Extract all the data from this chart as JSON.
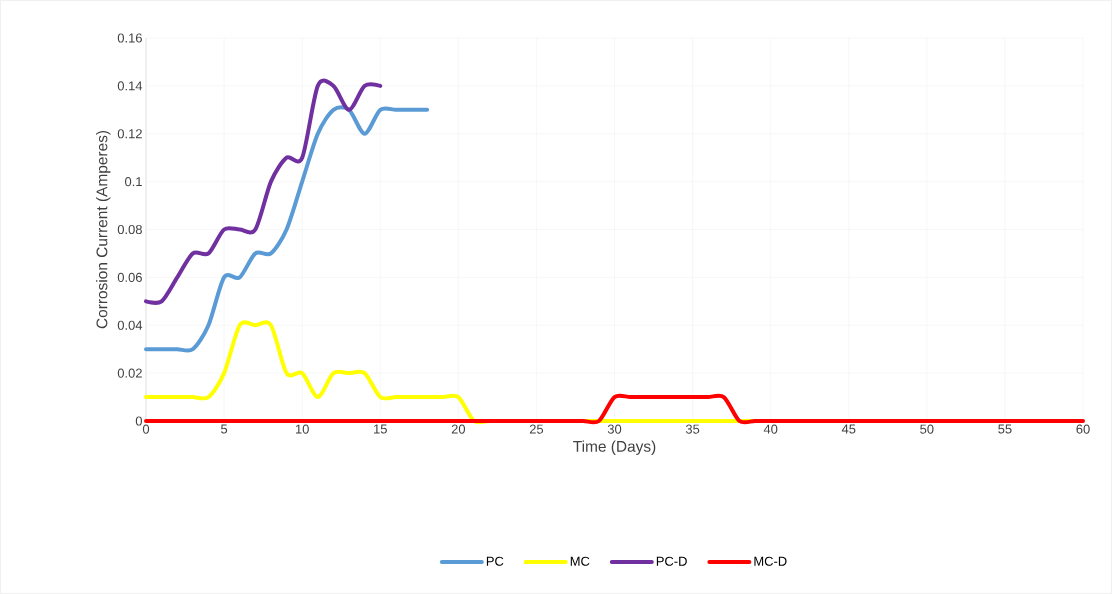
{
  "chart_data": {
    "type": "line",
    "xlabel": "Time (Days)",
    "ylabel": "Corrosion Current (Amperes)",
    "xlim": [
      0,
      60
    ],
    "xticks": [
      0,
      5,
      10,
      15,
      20,
      25,
      30,
      35,
      40,
      45,
      50,
      55,
      60
    ],
    "ylim": [
      0,
      0.16
    ],
    "yticks": [
      0,
      0.02,
      0.04,
      0.06,
      0.08,
      0.1,
      0.12,
      0.14,
      0.16
    ],
    "grid": true,
    "legend": "bottom",
    "marker": "none",
    "line_style": "solid",
    "series": [
      {
        "name": "PC",
        "color": "#5b9bd5",
        "x": [
          0,
          1,
          2,
          3,
          4,
          5,
          6,
          7,
          8,
          9,
          10,
          11,
          12,
          13,
          14,
          15,
          16,
          17,
          18
        ],
        "values": [
          0.03,
          0.03,
          0.03,
          0.03,
          0.04,
          0.06,
          0.06,
          0.07,
          0.07,
          0.08,
          0.1,
          0.12,
          0.13,
          0.13,
          0.12,
          0.13,
          0.13,
          0.13,
          0.13
        ]
      },
      {
        "name": "MC",
        "color": "#ffff00",
        "x": [
          0,
          1,
          2,
          3,
          4,
          5,
          6,
          7,
          8,
          9,
          10,
          11,
          12,
          13,
          14,
          15,
          16,
          17,
          18,
          19,
          20,
          21,
          22,
          23,
          24,
          25,
          26,
          27,
          28,
          29,
          30,
          31,
          32,
          33,
          34,
          35,
          36,
          37,
          38,
          39,
          40
        ],
        "values": [
          0.01,
          0.01,
          0.01,
          0.01,
          0.01,
          0.02,
          0.04,
          0.04,
          0.04,
          0.02,
          0.02,
          0.01,
          0.02,
          0.02,
          0.02,
          0.01,
          0.01,
          0.01,
          0.01,
          0.01,
          0.01,
          0,
          0,
          0,
          0,
          0,
          0,
          0,
          0,
          0,
          0,
          0,
          0,
          0,
          0,
          0,
          0,
          0,
          0,
          0,
          0
        ]
      },
      {
        "name": "PC-D",
        "color": "#7030a0",
        "x": [
          0,
          1,
          2,
          3,
          4,
          5,
          6,
          7,
          8,
          9,
          10,
          11,
          12,
          13,
          14,
          15
        ],
        "values": [
          0.05,
          0.05,
          0.06,
          0.07,
          0.07,
          0.08,
          0.08,
          0.08,
          0.1,
          0.11,
          0.11,
          0.14,
          0.14,
          0.13,
          0.14,
          0.14
        ]
      },
      {
        "name": "MC-D",
        "color": "#ff0000",
        "x": [
          0,
          1,
          2,
          3,
          4,
          5,
          6,
          7,
          8,
          9,
          10,
          11,
          12,
          13,
          14,
          15,
          16,
          17,
          18,
          19,
          20,
          21,
          22,
          23,
          24,
          25,
          26,
          27,
          28,
          29,
          30,
          31,
          32,
          33,
          34,
          35,
          36,
          37,
          38,
          39,
          40,
          41,
          42,
          43,
          44,
          45,
          46,
          47,
          48,
          49,
          50,
          51,
          52,
          53,
          54,
          55,
          56,
          57,
          58,
          59,
          60
        ],
        "values": [
          0,
          0,
          0,
          0,
          0,
          0,
          0,
          0,
          0,
          0,
          0,
          0,
          0,
          0,
          0,
          0,
          0,
          0,
          0,
          0,
          0,
          0,
          0,
          0,
          0,
          0,
          0,
          0,
          0,
          0,
          0.01,
          0.01,
          0.01,
          0.01,
          0.01,
          0.01,
          0.01,
          0.01,
          0,
          0,
          0,
          0,
          0,
          0,
          0,
          0,
          0,
          0,
          0,
          0,
          0,
          0,
          0,
          0,
          0,
          0,
          0,
          0,
          0,
          0,
          0
        ]
      }
    ]
  }
}
